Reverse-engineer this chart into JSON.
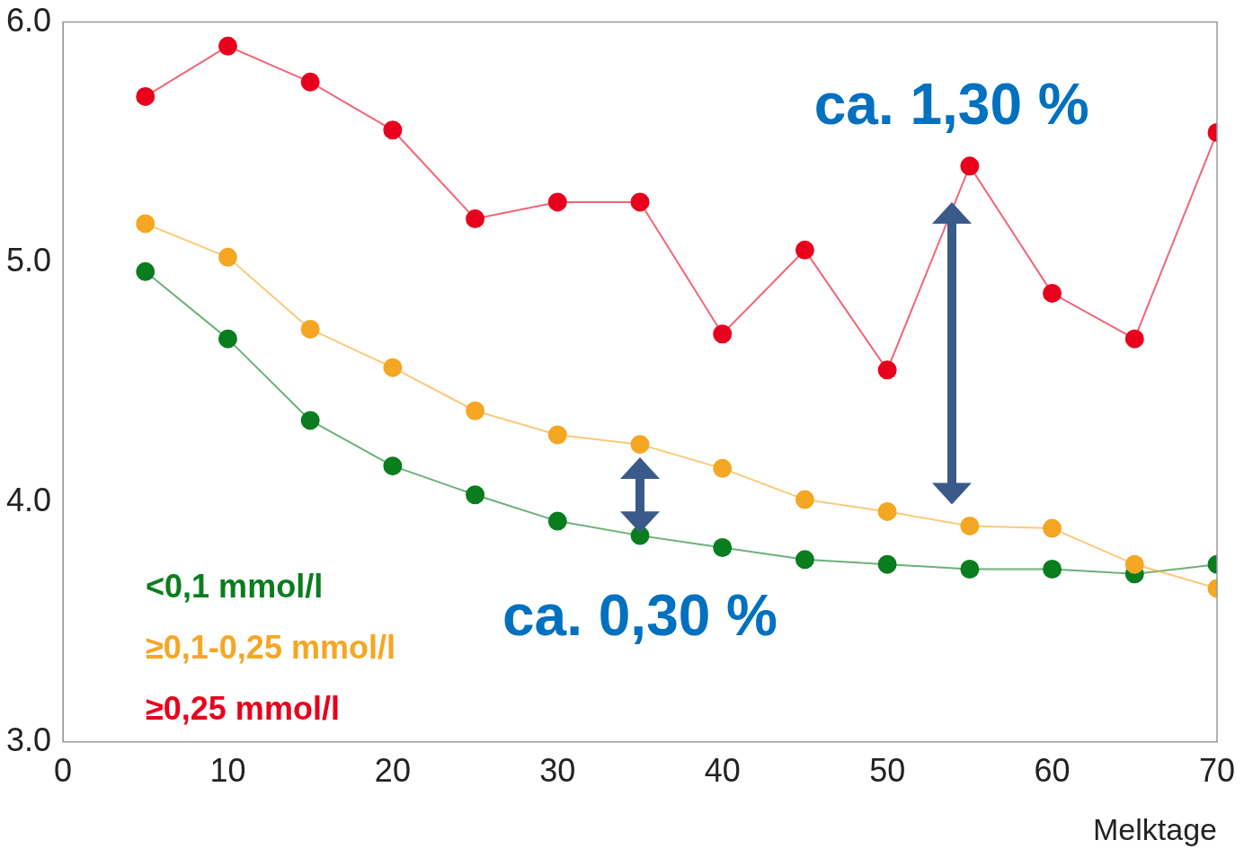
{
  "chart_data": {
    "type": "line",
    "xlabel": "Melktage",
    "x": [
      5,
      10,
      15,
      20,
      25,
      30,
      35,
      40,
      45,
      50,
      55,
      60,
      65,
      70
    ],
    "series": [
      {
        "name": "<0,1 mmol/l",
        "color": "#0a7d1e",
        "values": [
          4.96,
          4.68,
          4.34,
          4.15,
          4.03,
          3.92,
          3.86,
          3.81,
          3.76,
          3.74,
          3.72,
          3.72,
          3.7,
          3.74
        ]
      },
      {
        "name": "≥0,1-0,25 mmol/l",
        "color": "#f5a623",
        "values": [
          5.16,
          5.02,
          4.72,
          4.56,
          4.38,
          4.28,
          4.24,
          4.14,
          4.01,
          3.96,
          3.9,
          3.89,
          3.74,
          3.64
        ]
      },
      {
        "name": "≥0,25 mmol/l",
        "color": "#e8001c",
        "values": [
          5.69,
          5.9,
          5.75,
          5.55,
          5.18,
          5.25,
          5.25,
          4.7,
          5.05,
          4.55,
          5.4,
          4.87,
          4.68,
          5.54
        ]
      }
    ],
    "xlim": [
      0,
      70
    ],
    "xticks": [
      0,
      10,
      20,
      30,
      40,
      50,
      60,
      70
    ],
    "ylim": [
      3,
      6
    ],
    "yticks": [
      {
        "value": 3,
        "label": "3.0"
      },
      {
        "value": 4,
        "label": "4.0"
      },
      {
        "value": 5,
        "label": "5.0"
      },
      {
        "value": 6,
        "label": "6.0"
      }
    ],
    "annotations": [
      "ca. 0,30 %",
      "ca. 1,30 %"
    ],
    "legend": "bottom left",
    "grid": false,
    "marker": "circle",
    "line_style": "solid"
  }
}
